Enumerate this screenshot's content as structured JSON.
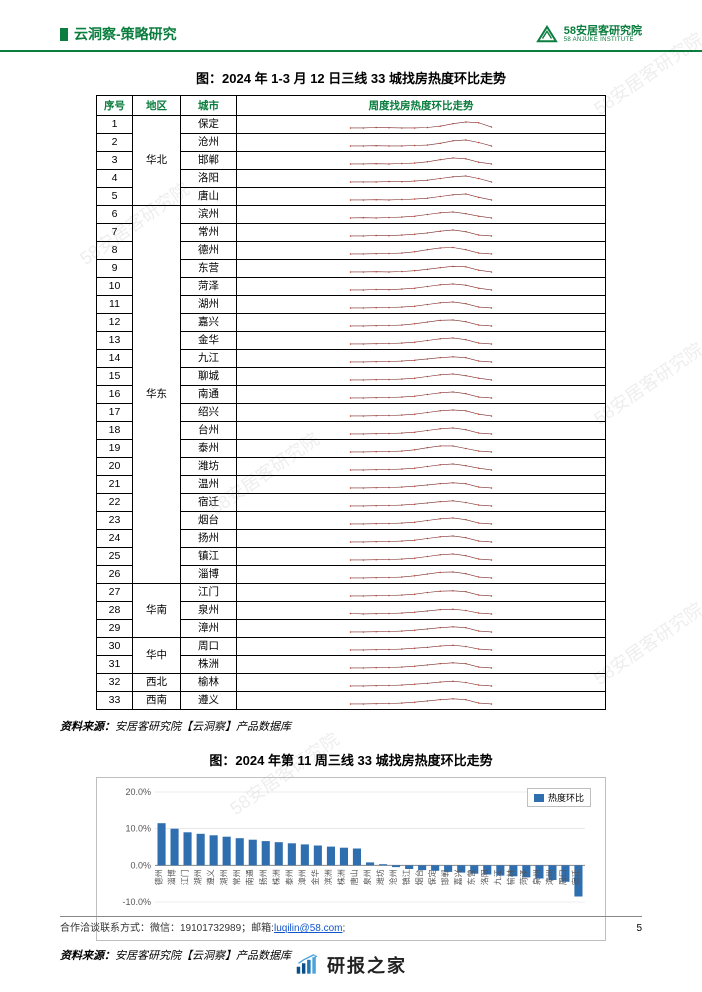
{
  "header": {
    "section_title": "云洞察-策略研究",
    "logo_cn": "58安居客研究院",
    "logo_en": "58  ANJUKE  INSTITUTE",
    "logo_color": "#0b7d3e"
  },
  "figure1": {
    "title": "图：2024 年 1-3 月 12 日三线 33 城找房热度环比走势",
    "columns": {
      "seq": "序号",
      "region": "地区",
      "city": "城市",
      "trend": "周度找房热度环比走势"
    },
    "spark_style": {
      "line_color": "#7a2e2e",
      "dot_color": "#c0392b",
      "line_width": 0.8,
      "dot_r": 1.0,
      "viewbox_w": 200,
      "viewbox_h": 20
    },
    "groups": [
      {
        "region": "华北",
        "rows": [
          {
            "seq": 1,
            "city": "保定",
            "spark": [
              11,
              11,
              10.5,
              10.8,
              11,
              11,
              10.5,
              9,
              6,
              4,
              5,
              10
            ]
          },
          {
            "seq": 2,
            "city": "沧州",
            "spark": [
              11,
              11,
              10.8,
              11,
              11,
              10.5,
              10,
              8,
              5,
              4,
              7,
              11
            ]
          },
          {
            "seq": 3,
            "city": "邯郸",
            "spark": [
              11,
              11,
              10.8,
              11,
              10.5,
              10,
              8.5,
              6,
              4,
              5,
              9,
              11
            ]
          },
          {
            "seq": 4,
            "city": "洛阳",
            "spark": [
              11,
              11,
              11,
              10.5,
              10.8,
              10,
              9,
              7,
              5,
              4,
              7,
              11
            ]
          },
          {
            "seq": 5,
            "city": "唐山",
            "spark": [
              11,
              11,
              10.8,
              11,
              10.5,
              10,
              9,
              7,
              5,
              4,
              8,
              11
            ]
          }
        ]
      },
      {
        "region": "华东",
        "rows": [
          {
            "seq": 6,
            "city": "滨州",
            "spark": [
              11,
              10.8,
              11,
              10.5,
              10,
              9,
              7,
              5,
              4,
              6,
              9,
              11
            ]
          },
          {
            "seq": 7,
            "city": "常州",
            "spark": [
              11,
              11,
              10.5,
              10.8,
              10,
              9,
              7.5,
              5.5,
              4,
              6,
              10,
              11
            ]
          },
          {
            "seq": 8,
            "city": "德州",
            "spark": [
              11,
              11,
              10.8,
              10.5,
              10,
              8.5,
              6,
              4,
              3.5,
              6,
              10,
              11
            ]
          },
          {
            "seq": 9,
            "city": "东营",
            "spark": [
              11,
              11,
              10.8,
              11,
              10.5,
              9.5,
              8,
              6,
              4.5,
              5,
              9,
              11
            ]
          },
          {
            "seq": 10,
            "city": "菏泽",
            "spark": [
              11,
              11,
              10.5,
              10.8,
              10,
              9,
              7,
              5,
              4,
              5.5,
              9,
              11
            ]
          },
          {
            "seq": 11,
            "city": "湖州",
            "spark": [
              11,
              11,
              10.8,
              10.5,
              10,
              9,
              7,
              5,
              4,
              6,
              10,
              11
            ]
          },
          {
            "seq": 12,
            "city": "嘉兴",
            "spark": [
              11,
              11,
              10.8,
              10.5,
              10,
              8.5,
              6.5,
              4.5,
              4,
              6,
              10,
              11
            ]
          },
          {
            "seq": 13,
            "city": "金华",
            "spark": [
              11,
              11,
              10.8,
              10.5,
              10,
              9,
              7,
              5,
              4,
              6,
              10,
              11
            ]
          },
          {
            "seq": 14,
            "city": "九江",
            "spark": [
              11,
              11,
              10.8,
              10.5,
              10,
              9,
              7.5,
              6,
              5,
              6,
              10,
              11
            ]
          },
          {
            "seq": 15,
            "city": "聊城",
            "spark": [
              11,
              11,
              10.8,
              10.5,
              10,
              9,
              7,
              5,
              4,
              6,
              9,
              11
            ]
          },
          {
            "seq": 16,
            "city": "南通",
            "spark": [
              11,
              11,
              10.8,
              10.5,
              10,
              9,
              7,
              5,
              4,
              6,
              10,
              11
            ]
          },
          {
            "seq": 17,
            "city": "绍兴",
            "spark": [
              11,
              11,
              10.8,
              10.5,
              10,
              9,
              7,
              5,
              4,
              5,
              9,
              11
            ]
          },
          {
            "seq": 18,
            "city": "台州",
            "spark": [
              11,
              11,
              10.8,
              10.5,
              10,
              9,
              7,
              5,
              4,
              6,
              10,
              11
            ]
          },
          {
            "seq": 19,
            "city": "泰州",
            "spark": [
              11,
              11,
              10.8,
              10.5,
              10,
              8.5,
              6,
              4,
              4,
              7,
              10,
              11
            ]
          },
          {
            "seq": 20,
            "city": "潍坊",
            "spark": [
              11,
              11,
              10.8,
              10.5,
              10,
              9,
              7,
              5,
              4,
              6,
              9,
              11
            ]
          },
          {
            "seq": 21,
            "city": "温州",
            "spark": [
              11,
              11,
              10.8,
              10.5,
              10,
              9,
              7.5,
              6,
              5,
              6,
              10,
              11
            ]
          },
          {
            "seq": 22,
            "city": "宿迁",
            "spark": [
              11,
              11,
              10.8,
              10.5,
              10,
              9,
              7.5,
              6,
              5,
              7,
              10,
              11
            ]
          },
          {
            "seq": 23,
            "city": "烟台",
            "spark": [
              11,
              11,
              10.8,
              10.5,
              10,
              9,
              7,
              5,
              4,
              6,
              10,
              11
            ]
          },
          {
            "seq": 24,
            "city": "扬州",
            "spark": [
              11,
              11,
              10.8,
              10.5,
              10,
              9,
              7,
              5,
              4,
              6,
              10,
              11
            ]
          },
          {
            "seq": 25,
            "city": "镇江",
            "spark": [
              11,
              11,
              10.8,
              10.5,
              10,
              9,
              7,
              5,
              4,
              6,
              10,
              11
            ]
          },
          {
            "seq": 26,
            "city": "淄博",
            "spark": [
              11,
              11,
              10.8,
              10.5,
              10,
              8.5,
              6.5,
              4.5,
              4,
              6,
              10,
              11
            ]
          }
        ]
      },
      {
        "region": "华南",
        "rows": [
          {
            "seq": 27,
            "city": "江门",
            "spark": [
              11,
              11,
              10.8,
              10.5,
              10,
              9,
              7,
              5.5,
              5,
              6,
              10,
              11
            ]
          },
          {
            "seq": 28,
            "city": "泉州",
            "spark": [
              10.5,
              11,
              10.8,
              10.5,
              10,
              9,
              7.5,
              6,
              5.5,
              7,
              10,
              11
            ]
          },
          {
            "seq": 29,
            "city": "漳州",
            "spark": [
              11,
              11,
              10.8,
              10.5,
              10,
              9,
              7.5,
              6,
              5,
              6,
              10,
              11
            ]
          }
        ]
      },
      {
        "region": "华中",
        "rows": [
          {
            "seq": 30,
            "city": "周口",
            "spark": [
              11,
              11,
              10.8,
              10.5,
              10,
              9,
              8,
              6.5,
              5.5,
              7,
              10,
              11
            ]
          },
          {
            "seq": 31,
            "city": "株洲",
            "spark": [
              11,
              11,
              10.8,
              10.5,
              10,
              9,
              7.5,
              6,
              5,
              6,
              10,
              11
            ]
          }
        ]
      },
      {
        "region": "西北",
        "rows": [
          {
            "seq": 32,
            "city": "榆林",
            "spark": [
              11,
              11,
              10.8,
              10.5,
              10,
              9,
              8,
              6.5,
              5.5,
              7,
              10,
              11
            ]
          }
        ]
      },
      {
        "region": "西南",
        "rows": [
          {
            "seq": 33,
            "city": "遵义",
            "spark": [
              11,
              11,
              10.8,
              10.5,
              10,
              9,
              7.5,
              6,
              5,
              6,
              10,
              11
            ]
          }
        ]
      }
    ]
  },
  "source": {
    "label": "资料来源：",
    "text": "安居客研究院【云洞察】产品数据库"
  },
  "figure2": {
    "title": "图：2024 年第 11 周三线 33 城找房热度环比走势",
    "legend": "热度环比",
    "bar_color": "#2f6fb0",
    "axis_color": "#888888",
    "grid_color": "#d9d9d9",
    "tick_fontsize": 9,
    "ylim": [
      -10,
      20
    ],
    "yticks": [
      -10,
      0,
      10,
      20
    ],
    "ytick_labels": [
      "-10.0%",
      "0.0%",
      "10.0%",
      "20.0%"
    ],
    "categories": [
      "德州",
      "淄博",
      "江门",
      "湖州",
      "遵义",
      "湖州",
      "常州",
      "南通",
      "扬州",
      "株洲",
      "泰州",
      "漳州",
      "金华",
      "滨洲",
      "株洲",
      "唐山",
      "泉州",
      "潍坊",
      "沧州",
      "镇江",
      "烟台",
      "保定",
      "邯郸",
      "嘉兴",
      "东营",
      "洛阳",
      "九江",
      "榆林",
      "菏泽",
      "泉州",
      "漳州",
      "周口",
      "宿迁"
    ],
    "values": [
      11.5,
      10.0,
      9.0,
      8.6,
      8.2,
      7.8,
      7.4,
      7.0,
      6.6,
      6.3,
      6.0,
      5.7,
      5.4,
      5.1,
      4.8,
      4.6,
      0.8,
      0.3,
      -0.5,
      -1.0,
      -1.3,
      -1.5,
      -1.8,
      -2.0,
      -2.3,
      -2.5,
      -2.8,
      -3.0,
      -3.3,
      -3.6,
      -4.0,
      -4.5,
      -8.5
    ]
  },
  "footer": {
    "text_prefix": "合作洽谈联系方式：微信：19101732989；邮箱:",
    "email": "luqilin@58.com",
    "text_suffix": ";",
    "page": "5"
  },
  "brand": {
    "name": "研报之家",
    "url_hint": "YBLOOK.COM",
    "bar_colors": [
      "#0b4f8a",
      "#0b4f8a",
      "#1f77b4",
      "#4aa3df",
      "#4aa3df"
    ]
  },
  "watermark": "58安居客研究院"
}
